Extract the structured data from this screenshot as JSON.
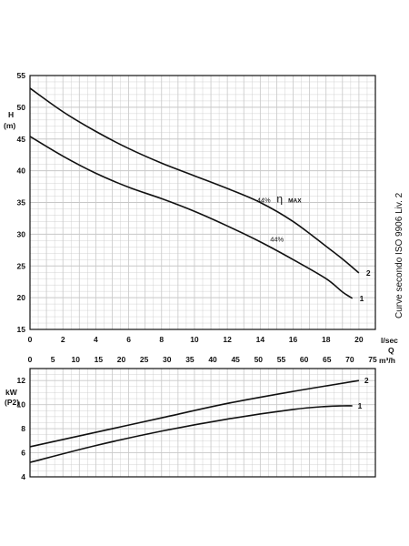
{
  "side_note": "Curve secondo ISO 9906 Liv. 2",
  "chart_data": [
    {
      "type": "line",
      "ylabel_top": "H",
      "ylabel_unit": "(m)",
      "xlabel_primary": "l/sec",
      "xlabel_secondary": "Q",
      "xlabel_secondary_unit": "m³/h",
      "xlim": [
        0,
        21
      ],
      "ylim": [
        15,
        55
      ],
      "yticks": [
        15,
        20,
        25,
        30,
        35,
        40,
        45,
        50,
        55
      ],
      "xticks_lsec": [
        0,
        2,
        4,
        6,
        8,
        10,
        12,
        14,
        16,
        18,
        20
      ],
      "xticks_m3h": [
        0,
        5,
        10,
        15,
        20,
        25,
        30,
        35,
        40,
        45,
        50,
        55,
        60,
        65,
        70,
        75
      ],
      "grid": true,
      "series": [
        {
          "name": "2",
          "x": [
            0,
            2,
            4,
            6,
            8,
            10,
            12,
            14,
            16,
            18,
            19,
            20
          ],
          "y": [
            53,
            49.3,
            46.2,
            43.5,
            41.2,
            39.2,
            37.2,
            35,
            32,
            28.1,
            26.1,
            23.9
          ]
        },
        {
          "name": "1",
          "x": [
            0,
            2,
            4,
            6,
            8,
            10,
            12,
            14,
            16,
            18,
            19,
            19.6
          ],
          "y": [
            45.4,
            42.3,
            39.6,
            37.4,
            35.6,
            33.6,
            31.3,
            28.8,
            26,
            23,
            20.9,
            19.9
          ]
        }
      ],
      "annotations": [
        {
          "text": "44%",
          "x": 13.8,
          "y": 35.4
        },
        {
          "text": "η",
          "x": 15,
          "y": 35.4
        },
        {
          "text": "MAX",
          "x": 15.7,
          "y": 35.4
        },
        {
          "text": "44%",
          "x": 14.6,
          "y": 29.3
        }
      ]
    },
    {
      "type": "line",
      "ylabel_top": "kW",
      "ylabel_unit": "(P2)",
      "xlim": [
        0,
        21
      ],
      "ylim": [
        4,
        13
      ],
      "yticks": [
        4,
        6,
        8,
        10,
        12
      ],
      "grid": true,
      "series": [
        {
          "name": "2",
          "x": [
            0,
            4,
            8,
            12,
            16,
            20
          ],
          "y": [
            6.5,
            7.7,
            8.9,
            10.1,
            11.1,
            12.0
          ]
        },
        {
          "name": "1",
          "x": [
            0,
            4,
            8,
            12,
            16,
            18,
            19,
            19.6
          ],
          "y": [
            5.2,
            6.6,
            7.8,
            8.8,
            9.6,
            9.85,
            9.9,
            9.9
          ]
        }
      ]
    }
  ]
}
